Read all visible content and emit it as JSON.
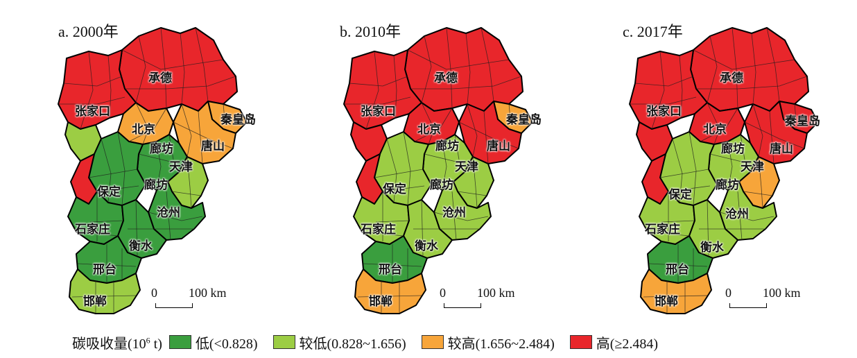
{
  "colors": {
    "low": "#3a9e3e",
    "lower": "#9ccd44",
    "higher": "#f7a53a",
    "high": "#e8262b",
    "county_border": "#1e1e1e",
    "city_border": "#000000"
  },
  "panels": [
    {
      "title": "a. 2000年",
      "cities": [
        "承德",
        "张家口",
        "北京",
        "秦皇岛",
        "廊坊",
        "唐山",
        "天津",
        "廊坊",
        "保定",
        "沧州",
        "石家庄",
        "衡水",
        "邢台",
        "邯郸"
      ],
      "regions": {
        "chengde": "high",
        "zjk": "high",
        "zjk_s": "lower",
        "beijing": "higher",
        "qhd": "higher",
        "tangshan": "higher",
        "tianjin": "lower",
        "langfang": "low",
        "baoding": "low",
        "baoding_w": "high",
        "cangzhou": "low",
        "sjz": "low",
        "hengshui": "low",
        "xingtai": "low",
        "handan": "lower"
      },
      "scale": {
        "zero": "0",
        "distance": "100 km"
      }
    },
    {
      "title": "b. 2010年",
      "cities": [
        "承德",
        "张家口",
        "北京",
        "秦皇岛",
        "廊坊",
        "唐山",
        "天津",
        "保定",
        "廊坊",
        "沧州",
        "石家庄",
        "衡水",
        "邢台",
        "邯郸"
      ],
      "regions": {
        "chengde": "high",
        "zjk": "high",
        "zjk_s": "high",
        "beijing": "high",
        "qhd": "higher",
        "tangshan": "high",
        "tianjin": "lower",
        "langfang": "lower",
        "baoding": "lower",
        "baoding_w": "high",
        "cangzhou": "lower",
        "sjz": "lower",
        "hengshui": "lower",
        "xingtai": "low",
        "handan": "higher"
      },
      "scale": {
        "zero": "0",
        "distance": "100 km"
      }
    },
    {
      "title": "c. 2017年",
      "cities": [
        "承德",
        "张家口",
        "北京",
        "秦皇岛",
        "廊坊",
        "唐山",
        "天津",
        "保定",
        "廊坊",
        "沧州",
        "石家庄",
        "衡水",
        "邢台",
        "邯郸"
      ],
      "regions": {
        "chengde": "high",
        "zjk": "high",
        "zjk_s": "high",
        "beijing": "high",
        "qhd": "high",
        "tangshan": "high",
        "tianjin": "higher",
        "langfang": "lower",
        "baoding": "lower",
        "baoding_w": "high",
        "cangzhou": "lower",
        "sjz": "lower",
        "hengshui": "lower",
        "xingtai": "low",
        "handan": "higher"
      },
      "scale": {
        "zero": "0",
        "distance": "100 km"
      }
    }
  ],
  "legend": {
    "title": "碳吸收量(10",
    "title_sup": "6",
    "title_unit": " t)",
    "items": [
      {
        "label": "低(<0.828)",
        "class": "low"
      },
      {
        "label": "较低(0.828~1.656)",
        "class": "lower"
      },
      {
        "label": "较高(1.656~2.484)",
        "class": "higher"
      },
      {
        "label": "高(≥2.484)",
        "class": "high"
      }
    ]
  }
}
